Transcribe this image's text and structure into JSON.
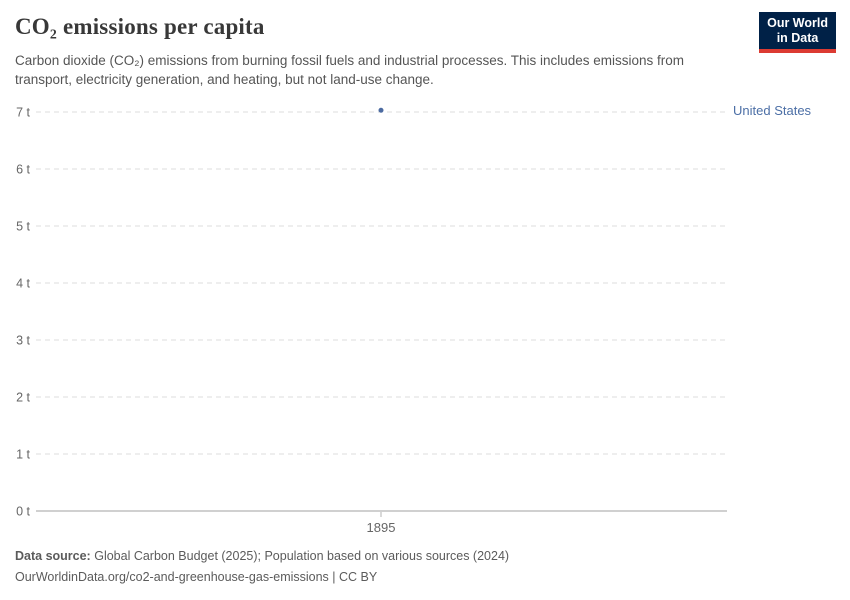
{
  "header": {
    "title": "CO₂ emissions per capita",
    "subtitle": "Carbon dioxide (CO₂) emissions from burning fossil fuels and industrial processes. This includes emissions from transport, electricity generation, and heating, but not land-use change.",
    "logo": {
      "line1": "Our World",
      "line2": "in Data"
    }
  },
  "footer": {
    "source_label": "Data source:",
    "source_text": "Global Carbon Budget (2025); Population based on various sources (2024)",
    "citation": "OurWorldinData.org/co2-and-greenhouse-gas-emissions | CC BY"
  },
  "colors": {
    "series_blue": "#4c6ba1",
    "entity_label_blue": "#4c6fa6",
    "logo_background": "#002147",
    "logo_red_bar": "#dc3b32",
    "gridline": "#dcdcdc",
    "axis_line": "#a1a1a1",
    "tick_mark": "#b3b3b3",
    "tick_label": "#666666"
  },
  "chart_data": {
    "type": "line",
    "title": "CO₂ emissions per capita",
    "xlabel": "",
    "ylabel": "",
    "unit": "t",
    "ylim": [
      0,
      7
    ],
    "grid": "horizontal-dashed",
    "legend_position": "right-of-line-end",
    "x": [
      1895
    ],
    "series": [
      {
        "name": "United States",
        "values": [
          7.03
        ]
      }
    ],
    "yticks": [
      {
        "value": 0,
        "label": "0 t"
      },
      {
        "value": 1,
        "label": "1 t"
      },
      {
        "value": 2,
        "label": "2 t"
      },
      {
        "value": 3,
        "label": "3 t"
      },
      {
        "value": 4,
        "label": "4 t"
      },
      {
        "value": 5,
        "label": "5 t"
      },
      {
        "value": 6,
        "label": "6 t"
      },
      {
        "value": 7,
        "label": "7 t"
      }
    ],
    "xticks": [
      {
        "value": 1895,
        "label": "1895"
      }
    ]
  }
}
